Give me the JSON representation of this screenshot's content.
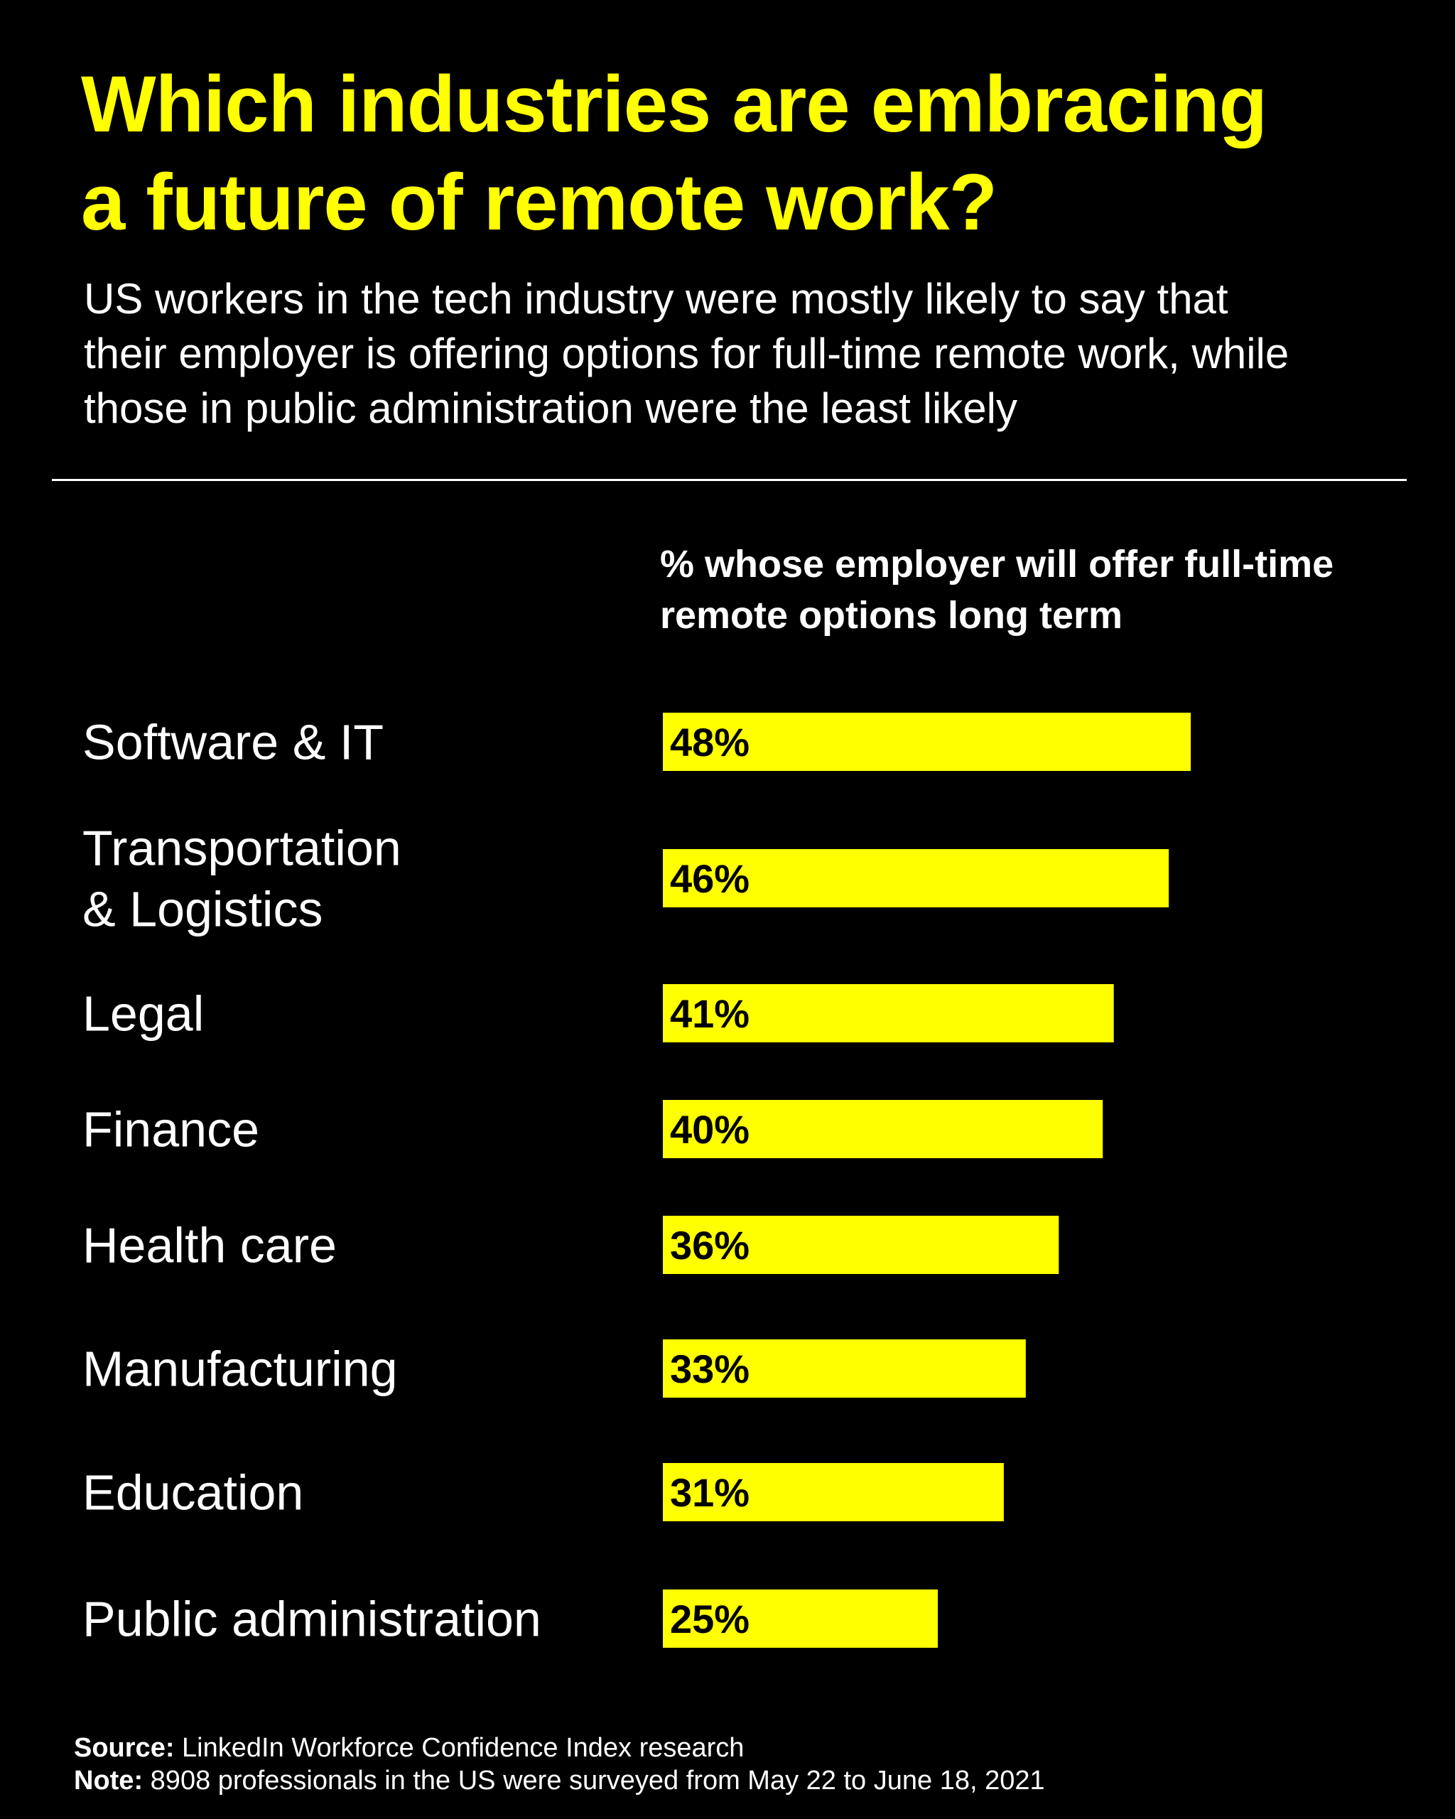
{
  "chart_data": {
    "type": "bar",
    "orientation": "horizontal",
    "title_lines": [
      "Which industries are embracing",
      "a future of remote work?"
    ],
    "subtitle_lines": [
      "US workers in the tech industry were mostly likely to say that",
      "their employer is offering options for full-time remote work, while",
      "those in public administration were the least likely"
    ],
    "axis_label_lines": [
      "% whose employer will offer full-time",
      "remote options long term"
    ],
    "categories": [
      [
        "Software & IT"
      ],
      [
        "Transportation",
        "& Logistics"
      ],
      [
        "Legal"
      ],
      [
        "Finance"
      ],
      [
        "Health care"
      ],
      [
        "Manufacturing"
      ],
      [
        "Education"
      ],
      [
        "Public administration"
      ]
    ],
    "values": [
      48,
      46,
      41,
      40,
      36,
      33,
      31,
      25
    ],
    "data_labels": [
      "48%",
      "46%",
      "41%",
      "40%",
      "36%",
      "33%",
      "31%",
      "25%"
    ],
    "unit": "%",
    "bar_color": "#ffff00",
    "background_color": "#000000",
    "grid": false,
    "legend": "none"
  },
  "footer": {
    "source_label": "Source:",
    "source_text": "LinkedIn Workforce Confidence Index research",
    "note_label": "Note:",
    "note_text": "8908 professionals in the US were surveyed from May 22 to June 18, 2021"
  }
}
